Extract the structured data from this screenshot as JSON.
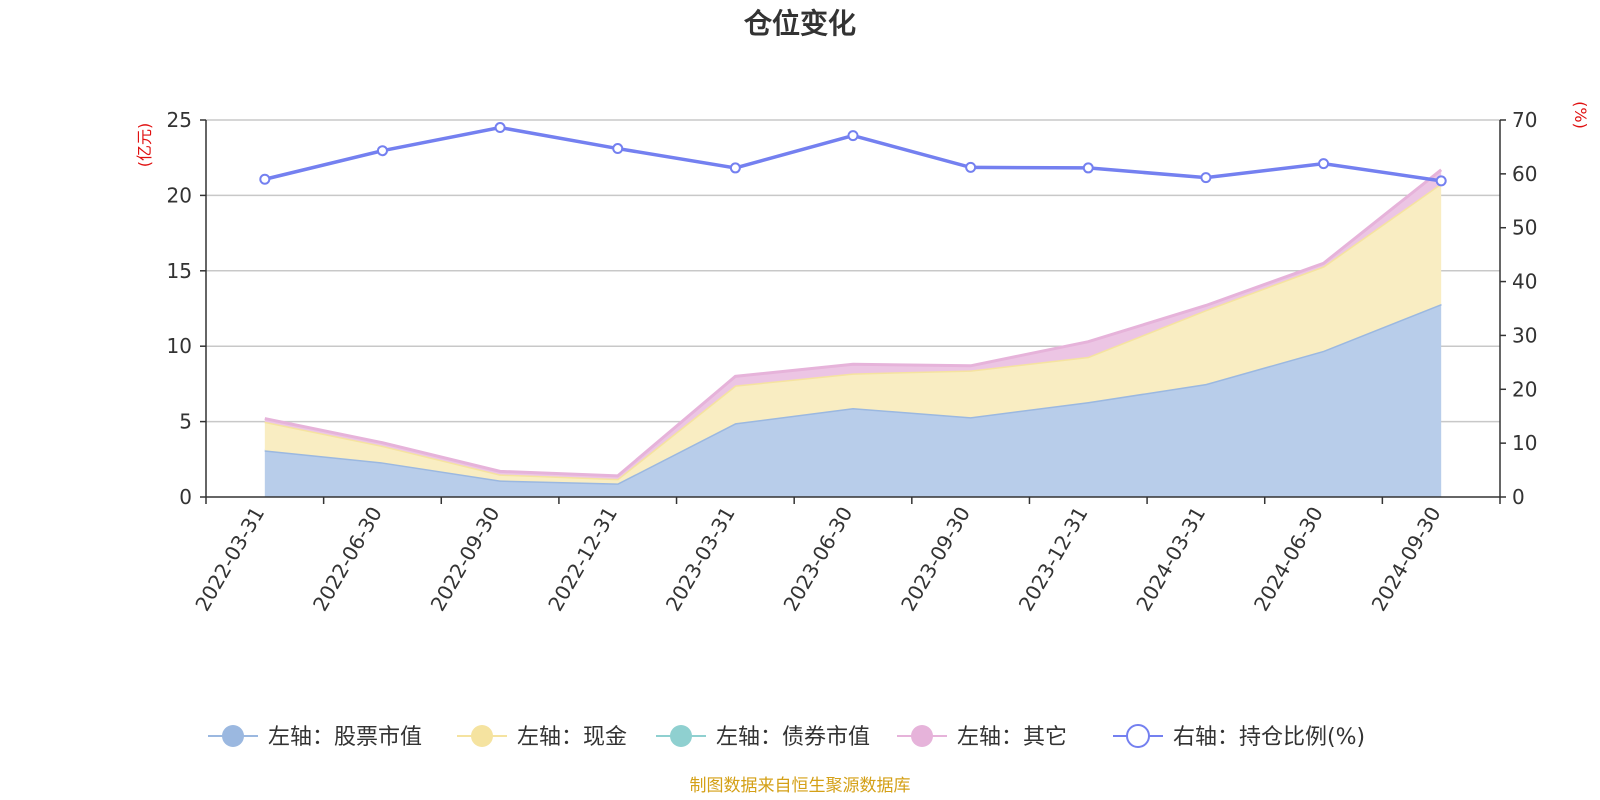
{
  "chart_data": {
    "type": "area",
    "title": "仓位变化",
    "categories": [
      "2022-03-31",
      "2022-06-30",
      "2022-09-30",
      "2022-12-31",
      "2023-03-31",
      "2023-06-30",
      "2023-09-30",
      "2023-12-31",
      "2024-03-31",
      "2024-06-30",
      "2024-09-30"
    ],
    "left_axis": {
      "unit": "(亿元)",
      "ticks": [
        "0",
        "5",
        "10",
        "15",
        "20",
        "25"
      ],
      "ylim": [
        0,
        25
      ]
    },
    "right_axis": {
      "unit": "(%)",
      "ticks": [
        "0",
        "10",
        "20",
        "30",
        "40",
        "50",
        "60",
        "70"
      ],
      "ylim": [
        0,
        70
      ]
    },
    "stacked": true,
    "grid": true,
    "legend_position": "bottom",
    "series": [
      {
        "name": "左轴：股票市值",
        "axis": "left",
        "kind": "area",
        "color": "#9bb8e0",
        "fill": "#b8cdea",
        "values": [
          3.1,
          2.3,
          1.1,
          0.9,
          4.9,
          5.9,
          5.3,
          6.3,
          7.5,
          9.7,
          12.8
        ]
      },
      {
        "name": "左轴：现金",
        "axis": "left",
        "kind": "area",
        "color": "#f5e3a0",
        "fill": "#f9edc2",
        "values": [
          1.9,
          1.1,
          0.4,
          0.3,
          2.5,
          2.3,
          3.1,
          3.0,
          4.9,
          5.6,
          8.0
        ]
      },
      {
        "name": "左轴：债券市值",
        "axis": "left",
        "kind": "area",
        "color": "#8fd0d0",
        "fill": "#a8dcdc",
        "values": [
          0,
          0,
          0,
          0,
          0,
          0,
          0,
          0,
          0,
          0,
          0
        ]
      },
      {
        "name": "左轴：其它",
        "axis": "left",
        "kind": "area",
        "color": "#e6b3da",
        "fill": "#ecc5e4",
        "values": [
          0.2,
          0.2,
          0.2,
          0.2,
          0.6,
          0.6,
          0.3,
          1.0,
          0.3,
          0.2,
          0.9
        ]
      },
      {
        "name": "右轴：持仓比例(%)",
        "axis": "right",
        "kind": "line",
        "color": "#7480f0",
        "values": [
          59,
          64.3,
          68.6,
          64.7,
          61.1,
          67.1,
          61.2,
          61.1,
          59.3,
          61.9,
          58.7
        ]
      }
    ]
  },
  "source": "制图数据来自恒生聚源数据库"
}
